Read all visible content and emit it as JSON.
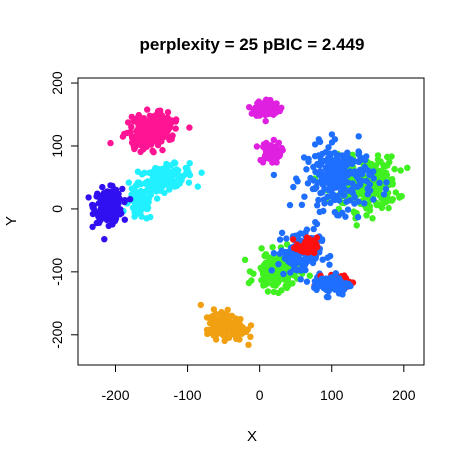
{
  "chart_data": {
    "type": "scatter",
    "title": "perplexity = 25 pBIC = 2.449",
    "xlabel": "X",
    "ylabel": "Y",
    "xlim": [
      -252,
      228
    ],
    "ylim": [
      -248,
      208
    ],
    "xticks": [
      -200,
      -100,
      0,
      100,
      200
    ],
    "yticks": [
      -200,
      -100,
      0,
      100,
      200
    ],
    "grid": false,
    "legend": "none",
    "clusters": [
      {
        "color": "#FF1493",
        "center": [
          -150,
          125
        ],
        "spread": [
          28,
          22
        ],
        "n": 220,
        "rotate": 0.6
      },
      {
        "color": "#20F0FF",
        "center": [
          -130,
          50
        ],
        "spread": [
          30,
          15
        ],
        "n": 120,
        "rotate": 0.2
      },
      {
        "color": "#20F0FF",
        "center": [
          -165,
          10
        ],
        "spread": [
          15,
          25
        ],
        "n": 80,
        "rotate": 0
      },
      {
        "color": "#3010F0",
        "center": [
          -210,
          5
        ],
        "spread": [
          16,
          22
        ],
        "n": 200,
        "rotate": 0
      },
      {
        "color": "#E020E0",
        "center": [
          10,
          160
        ],
        "spread": [
          14,
          12
        ],
        "n": 90,
        "rotate": 0
      },
      {
        "color": "#E020E0",
        "center": [
          15,
          90
        ],
        "spread": [
          12,
          14
        ],
        "n": 70,
        "rotate": 0
      },
      {
        "color": "#40F020",
        "center": [
          145,
          40
        ],
        "spread": [
          38,
          35
        ],
        "n": 260,
        "rotate": 0
      },
      {
        "color": "#1E6FFF",
        "center": [
          110,
          50
        ],
        "spread": [
          40,
          42
        ],
        "n": 240,
        "rotate": 0
      },
      {
        "color": "#40F020",
        "center": [
          25,
          -100
        ],
        "spread": [
          25,
          25
        ],
        "n": 140,
        "rotate": 0
      },
      {
        "color": "#1E6FFF",
        "center": [
          55,
          -70
        ],
        "spread": [
          25,
          30
        ],
        "n": 130,
        "rotate": 0
      },
      {
        "color": "#FF1010",
        "center": [
          65,
          -60
        ],
        "spread": [
          12,
          12
        ],
        "n": 40,
        "rotate": 0
      },
      {
        "color": "#FF1010",
        "center": [
          108,
          -115
        ],
        "spread": [
          16,
          8
        ],
        "n": 60,
        "rotate": 0
      },
      {
        "color": "#1E6FFF",
        "center": [
          100,
          -120
        ],
        "spread": [
          22,
          14
        ],
        "n": 70,
        "rotate": 0
      },
      {
        "color": "#F0A010",
        "center": [
          -45,
          -185
        ],
        "spread": [
          22,
          16
        ],
        "n": 180,
        "rotate": -0.3
      }
    ],
    "accent_colors": [
      "#FF1493",
      "#20F0FF",
      "#3010F0",
      "#E020E0",
      "#40F020",
      "#1E6FFF",
      "#FF1010",
      "#F0A010",
      "#FFFF20"
    ]
  }
}
